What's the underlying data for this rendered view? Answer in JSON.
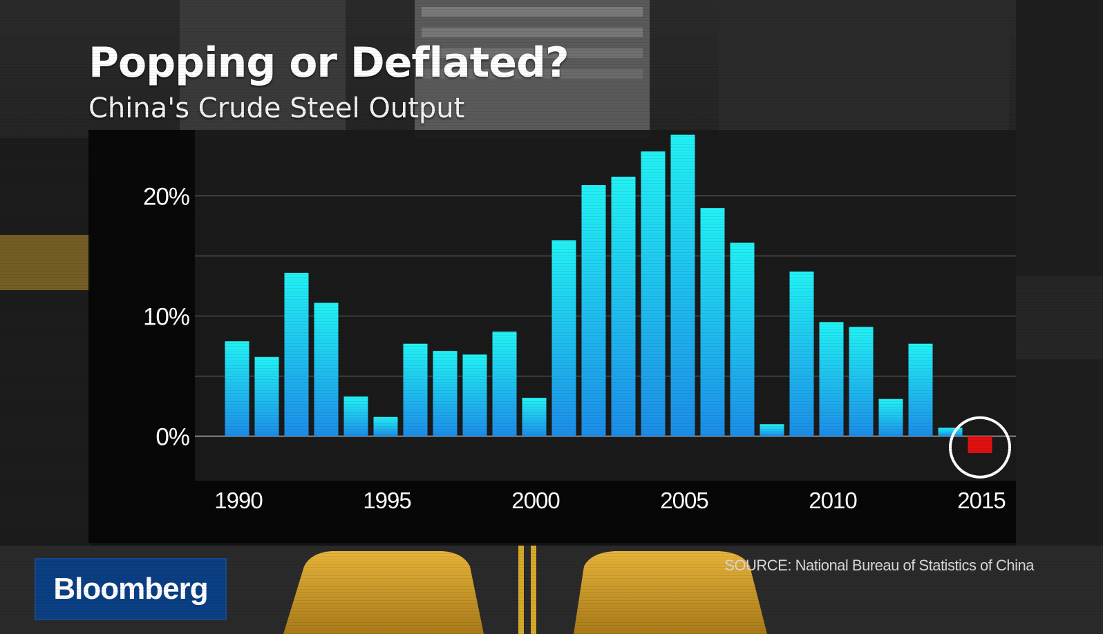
{
  "header": {
    "title": "Popping or Deflated?",
    "subtitle": "China's Crude Steel Output"
  },
  "chart_data": {
    "type": "bar",
    "title": "Popping or Deflated?",
    "subtitle": "China's Crude Steel Output",
    "categories": [
      "1990",
      "1991",
      "1992",
      "1993",
      "1994",
      "1995",
      "1996",
      "1997",
      "1998",
      "1999",
      "2000",
      "2001",
      "2002",
      "2003",
      "2004",
      "2005",
      "2006",
      "2007",
      "2008",
      "2009",
      "2010",
      "2011",
      "2012",
      "2013",
      "2014",
      "2015"
    ],
    "values": [
      7.9,
      6.6,
      13.6,
      11.1,
      3.3,
      1.6,
      7.7,
      7.1,
      6.8,
      8.7,
      3.2,
      16.3,
      20.9,
      21.6,
      23.7,
      25.1,
      19.0,
      16.1,
      1.0,
      13.7,
      9.5,
      9.1,
      3.1,
      7.7,
      0.7,
      -1.4
    ],
    "highlight_index": 25,
    "x_tick_labels": [
      "1990",
      "1995",
      "2000",
      "2005",
      "2010",
      "2015"
    ],
    "y_tick_labels": [
      "0%",
      "10%",
      "20%"
    ],
    "y_ticks": [
      0,
      10,
      20
    ],
    "ylim": [
      -3.7,
      25.5
    ],
    "xlabel": "",
    "ylabel": "",
    "grid": true,
    "colors": {
      "bar_top": "#22f2f5",
      "bar_bottom": "#1c8de8",
      "highlight": "#e01010",
      "circle": "#ffffff"
    }
  },
  "source": "SOURCE: National Bureau of Statistics of China",
  "logo": {
    "text": "Bloomberg",
    "color": "#0b3f83"
  }
}
